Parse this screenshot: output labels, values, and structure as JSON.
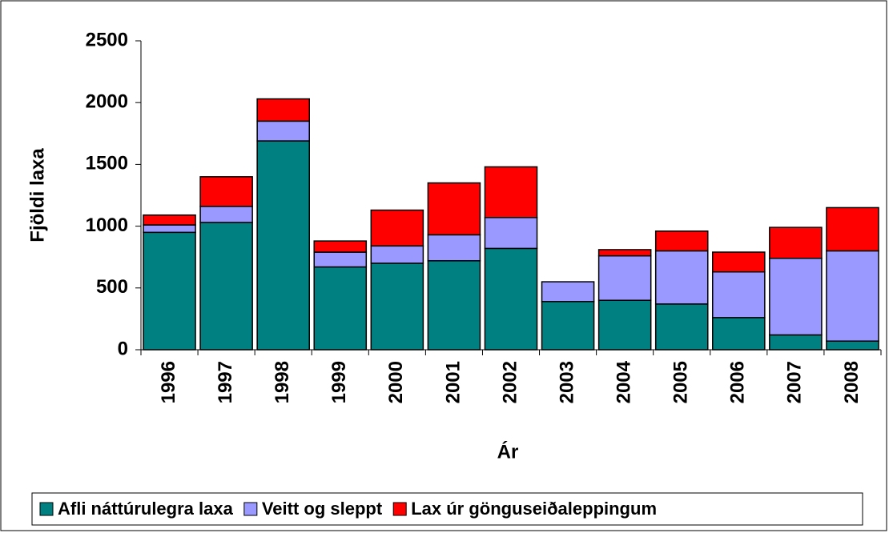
{
  "chart_data": {
    "type": "bar",
    "stacked": true,
    "x_label": "Ár",
    "y_label": "Fjöldi laxa",
    "categories": [
      "1996",
      "1997",
      "1998",
      "1999",
      "2000",
      "2001",
      "2002",
      "2003",
      "2004",
      "2005",
      "2006",
      "2007",
      "2008"
    ],
    "series": [
      {
        "name": "Afli náttúrulegra laxa",
        "color": "#008080",
        "values": [
          950,
          1030,
          1690,
          670,
          700,
          720,
          820,
          390,
          400,
          370,
          260,
          120,
          70
        ]
      },
      {
        "name": "Veitt og sleppt",
        "color": "#9999ff",
        "values": [
          60,
          130,
          160,
          120,
          140,
          210,
          250,
          160,
          360,
          430,
          370,
          620,
          730
        ]
      },
      {
        "name": "Lax úr gönguseiðaleppingum",
        "color": "#ff0000",
        "values": [
          80,
          240,
          180,
          90,
          290,
          420,
          410,
          0,
          50,
          160,
          160,
          250,
          350
        ]
      }
    ],
    "ylim": [
      0,
      2500
    ],
    "yticks": [
      0,
      500,
      1000,
      1500,
      2000,
      2500
    ]
  }
}
